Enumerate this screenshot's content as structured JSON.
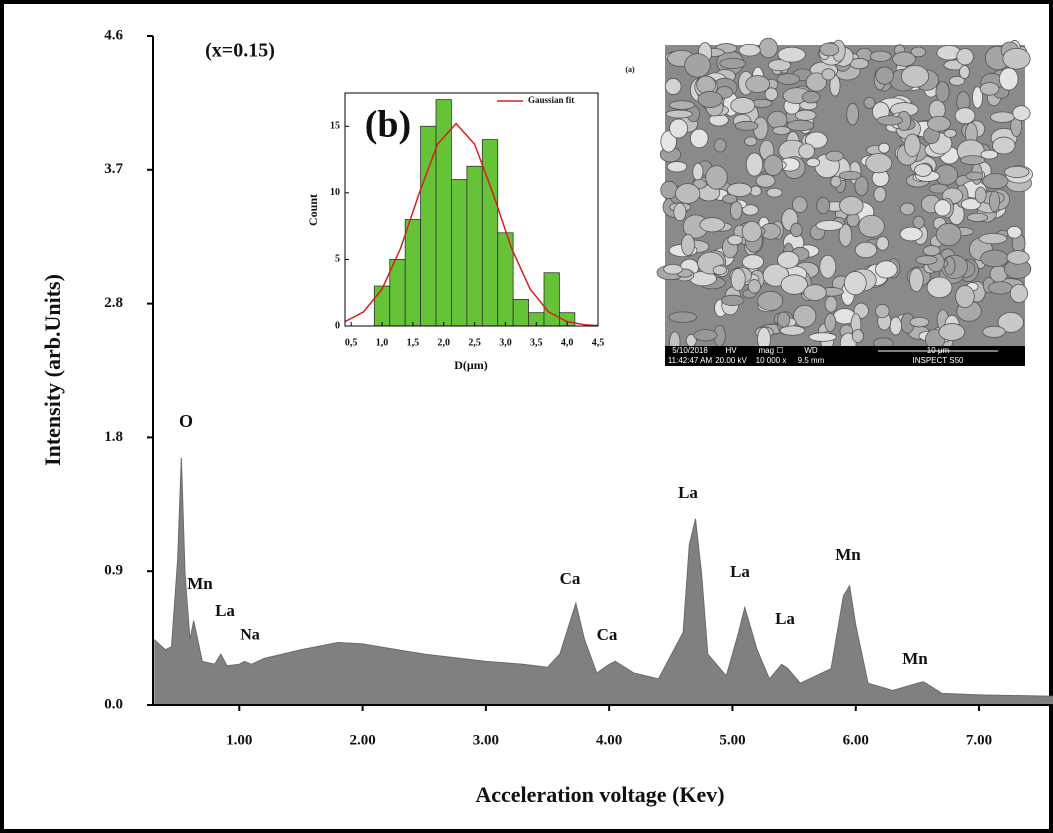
{
  "chart_data": [
    {
      "type": "area",
      "xlabel": "Acceleration voltage (Kev)",
      "ylabel": "Intensity (arb.Units)",
      "x": [
        0.31,
        0.4,
        0.45,
        0.5,
        0.53,
        0.56,
        0.6,
        0.63,
        0.7,
        0.8,
        0.85,
        0.9,
        1.0,
        1.04,
        1.1,
        1.2,
        1.5,
        1.8,
        2.0,
        2.5,
        3.0,
        3.3,
        3.5,
        3.6,
        3.7,
        3.73,
        3.8,
        3.9,
        4.0,
        4.05,
        4.2,
        4.4,
        4.6,
        4.65,
        4.7,
        4.75,
        4.8,
        4.95,
        5.05,
        5.1,
        5.2,
        5.3,
        5.4,
        5.45,
        5.55,
        5.8,
        5.9,
        5.95,
        6.0,
        6.1,
        6.3,
        6.5,
        6.55,
        6.7,
        7.0,
        7.6
      ],
      "values": [
        0.45,
        0.38,
        0.4,
        1.0,
        1.7,
        0.9,
        0.45,
        0.58,
        0.3,
        0.28,
        0.35,
        0.27,
        0.28,
        0.3,
        0.28,
        0.32,
        0.38,
        0.43,
        0.42,
        0.35,
        0.3,
        0.28,
        0.26,
        0.35,
        0.62,
        0.7,
        0.45,
        0.22,
        0.28,
        0.3,
        0.22,
        0.18,
        0.5,
        1.1,
        1.28,
        0.9,
        0.35,
        0.2,
        0.5,
        0.67,
        0.38,
        0.18,
        0.28,
        0.25,
        0.15,
        0.25,
        0.75,
        0.82,
        0.55,
        0.15,
        0.1,
        0.15,
        0.16,
        0.08,
        0.07,
        0.06
      ],
      "color": "#808080",
      "xlim": [
        0.3,
        7.6
      ],
      "ylim": [
        0,
        4.6
      ],
      "xticks": [
        {
          "value": 1,
          "label": "1.00"
        },
        {
          "value": 2,
          "label": "2.00"
        },
        {
          "value": 3,
          "label": "3.00"
        },
        {
          "value": 4,
          "label": "4.00"
        },
        {
          "value": 5,
          "label": "5.00"
        },
        {
          "value": 6,
          "label": "6.00"
        },
        {
          "value": 7,
          "label": "7.00"
        }
      ],
      "yticks": [
        {
          "value": 0,
          "label": "0.0"
        },
        {
          "value": 0.92,
          "label": "0.9"
        },
        {
          "value": 1.84,
          "label": "1.8"
        },
        {
          "value": 2.76,
          "label": "2.8"
        },
        {
          "value": 3.68,
          "label": "3.7"
        },
        4.6
      ],
      "annotations": [
        "(x=0.15)",
        "O",
        "Mn",
        "La",
        "Na",
        "Ca",
        "Ca",
        "La",
        "La",
        "La",
        "Mn",
        "Mn"
      ]
    },
    {
      "type": "histogram",
      "title": "(b)",
      "xlabel": "D(μm)",
      "ylabel": "Count",
      "bins": [
        0.875,
        1.125,
        1.375,
        1.625,
        1.875,
        2.125,
        2.375,
        2.625,
        2.875,
        3.125,
        3.375,
        3.625,
        3.875,
        4.125
      ],
      "values": [
        3,
        5,
        8,
        15,
        17,
        11,
        12,
        14,
        7,
        2,
        1,
        4,
        1
      ],
      "color": "#66c236",
      "xlim": [
        0.4,
        4.5
      ],
      "ylim": [
        0,
        17.5
      ],
      "xticks": [
        {
          "value": 0.5,
          "label": "0,5"
        },
        {
          "value": 1,
          "label": "1,0"
        },
        {
          "value": 1.5,
          "label": "1,5"
        },
        {
          "value": 2,
          "label": "2,0"
        },
        {
          "value": 2.5,
          "label": "2,5"
        },
        {
          "value": 3,
          "label": "3,0"
        },
        {
          "value": 3.5,
          "label": "3,5"
        },
        {
          "value": 4,
          "label": "4,0"
        },
        {
          "value": 4.5,
          "label": "4,5"
        }
      ],
      "yticks": [
        0,
        5,
        10,
        15
      ],
      "fit": {
        "name": "Gaussian fit",
        "color": "#d62020",
        "x": [
          0.4,
          0.7,
          1.0,
          1.3,
          1.6,
          1.9,
          2.2,
          2.5,
          2.8,
          3.1,
          3.4,
          3.7,
          4.0,
          4.3,
          4.5
        ],
        "values": [
          0.33,
          1.06,
          2.77,
          5.83,
          9.93,
          13.66,
          15.2,
          13.66,
          9.93,
          5.83,
          2.77,
          1.06,
          0.33,
          0.08,
          0.03
        ]
      }
    }
  ],
  "sem_image": {
    "label": "(a)",
    "date": "5/10/2018",
    "time": "11:42:47 AM",
    "hv_label": "HV",
    "hv": "20.00 kV",
    "mag_label": "mag ☐",
    "mag": "10 000 x",
    "wd_label": "WD",
    "wd": "9.5 mm",
    "scale": "10 μm",
    "instrument": "INSPECT S50"
  }
}
